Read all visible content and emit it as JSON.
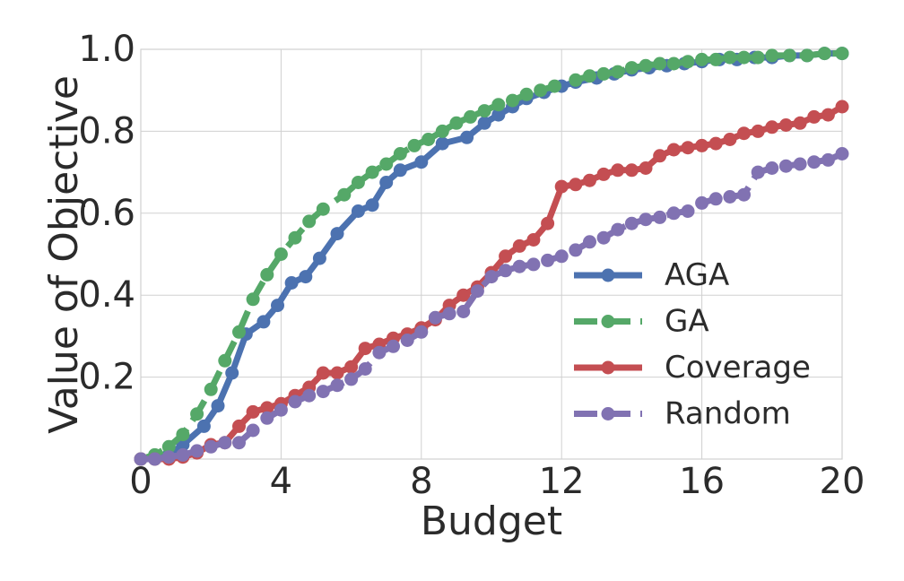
{
  "chart_data": {
    "type": "line",
    "title": "",
    "xlabel": "Budget",
    "ylabel": "Value of Objective",
    "xlim": [
      0,
      20
    ],
    "ylim": [
      0,
      1.0
    ],
    "xticks": [
      0,
      4,
      8,
      12,
      16,
      20
    ],
    "yticks": [
      0.2,
      0.4,
      0.6,
      0.8,
      1.0
    ],
    "xtick_labels": [
      "0",
      "4",
      "8",
      "12",
      "16",
      "20"
    ],
    "ytick_labels": [
      "0.2",
      "0.4",
      "0.6",
      "0.8",
      "1.0"
    ],
    "grid": true,
    "legend_position": "lower-right",
    "series": [
      {
        "name": "AGA",
        "color": "#4c72b0",
        "dash": "solid",
        "x": [
          0,
          0.4,
          0.8,
          1.2,
          1.8,
          2.2,
          2.6,
          3.0,
          3.5,
          3.9,
          4.3,
          4.7,
          5.1,
          5.6,
          6.2,
          6.6,
          7.0,
          7.4,
          8.0,
          8.6,
          9.3,
          9.8,
          10.2,
          10.6,
          11.0,
          11.5,
          12.0,
          12.4,
          13.0,
          13.5,
          14.0,
          14.5,
          15.0,
          15.5,
          16.0,
          16.5,
          17.0,
          17.5,
          18.0,
          18.5,
          19.0,
          19.5,
          20.0
        ],
        "y": [
          0.0,
          0.0,
          0.01,
          0.035,
          0.08,
          0.13,
          0.21,
          0.305,
          0.335,
          0.375,
          0.43,
          0.445,
          0.49,
          0.55,
          0.605,
          0.62,
          0.675,
          0.705,
          0.725,
          0.77,
          0.785,
          0.82,
          0.84,
          0.86,
          0.88,
          0.895,
          0.91,
          0.92,
          0.93,
          0.94,
          0.95,
          0.955,
          0.96,
          0.965,
          0.97,
          0.975,
          0.975,
          0.98,
          0.98,
          0.985,
          0.985,
          0.99,
          0.99
        ]
      },
      {
        "name": "GA",
        "color": "#55a868",
        "dash": "dashed",
        "x": [
          0,
          0.4,
          0.8,
          1.2,
          1.6,
          2.0,
          2.4,
          2.8,
          3.2,
          3.6,
          4.0,
          4.4,
          4.8,
          5.2,
          5.8,
          6.2,
          6.6,
          7.0,
          7.4,
          7.8,
          8.2,
          8.6,
          9.0,
          9.4,
          9.8,
          10.2,
          10.6,
          11.0,
          11.4,
          11.8,
          12.4,
          12.8,
          13.2,
          13.6,
          14.0,
          14.4,
          14.8,
          15.2,
          15.6,
          16.0,
          16.4,
          16.8,
          17.2,
          17.6,
          18.0,
          18.5,
          19.0,
          19.5,
          20.0
        ],
        "y": [
          0.0,
          0.01,
          0.03,
          0.06,
          0.11,
          0.17,
          0.24,
          0.31,
          0.39,
          0.45,
          0.5,
          0.54,
          0.58,
          0.61,
          0.645,
          0.675,
          0.7,
          0.72,
          0.745,
          0.765,
          0.78,
          0.8,
          0.82,
          0.835,
          0.85,
          0.865,
          0.875,
          0.89,
          0.9,
          0.91,
          0.925,
          0.935,
          0.94,
          0.945,
          0.955,
          0.96,
          0.965,
          0.965,
          0.97,
          0.975,
          0.975,
          0.98,
          0.98,
          0.98,
          0.985,
          0.985,
          0.985,
          0.99,
          0.99
        ]
      },
      {
        "name": "Coverage",
        "color": "#c44e52",
        "dash": "solid",
        "x": [
          0,
          0.4,
          0.8,
          1.2,
          1.6,
          2.0,
          2.4,
          2.8,
          3.2,
          3.6,
          4.0,
          4.4,
          4.8,
          5.2,
          5.6,
          6.0,
          6.4,
          6.8,
          7.2,
          7.6,
          8.0,
          8.4,
          8.8,
          9.2,
          9.6,
          10.0,
          10.4,
          10.8,
          11.2,
          11.6,
          12.0,
          12.4,
          12.8,
          13.2,
          13.6,
          14.0,
          14.4,
          14.8,
          15.2,
          15.6,
          16.0,
          16.4,
          16.8,
          17.2,
          17.6,
          18.0,
          18.4,
          18.8,
          19.2,
          19.6,
          20.0
        ],
        "y": [
          0.0,
          0.0,
          0.0,
          0.005,
          0.015,
          0.035,
          0.04,
          0.08,
          0.115,
          0.125,
          0.135,
          0.155,
          0.175,
          0.21,
          0.21,
          0.225,
          0.27,
          0.28,
          0.295,
          0.305,
          0.32,
          0.34,
          0.375,
          0.4,
          0.42,
          0.455,
          0.495,
          0.52,
          0.535,
          0.575,
          0.665,
          0.67,
          0.68,
          0.695,
          0.705,
          0.705,
          0.71,
          0.74,
          0.755,
          0.76,
          0.765,
          0.77,
          0.78,
          0.795,
          0.8,
          0.81,
          0.815,
          0.82,
          0.835,
          0.84,
          0.86
        ]
      },
      {
        "name": "Random",
        "color": "#8172b2",
        "dash": "dashed",
        "x": [
          0,
          0.4,
          0.8,
          1.2,
          1.6,
          2.0,
          2.4,
          2.8,
          3.2,
          3.6,
          4.0,
          4.4,
          4.8,
          5.2,
          5.6,
          6.0,
          6.4,
          6.8,
          7.2,
          7.6,
          8.0,
          8.4,
          8.8,
          9.2,
          9.6,
          10.0,
          10.4,
          10.8,
          11.2,
          11.6,
          12.0,
          12.4,
          12.8,
          13.2,
          13.6,
          14.0,
          14.4,
          14.8,
          15.2,
          15.6,
          16.0,
          16.4,
          16.8,
          17.2,
          17.6,
          18.0,
          18.4,
          18.8,
          19.2,
          19.6,
          20.0
        ],
        "y": [
          0.0,
          0.0,
          0.005,
          0.01,
          0.02,
          0.03,
          0.04,
          0.04,
          0.07,
          0.1,
          0.12,
          0.14,
          0.155,
          0.165,
          0.18,
          0.195,
          0.22,
          0.26,
          0.275,
          0.29,
          0.31,
          0.345,
          0.355,
          0.36,
          0.41,
          0.445,
          0.46,
          0.47,
          0.475,
          0.485,
          0.495,
          0.51,
          0.53,
          0.54,
          0.56,
          0.575,
          0.585,
          0.59,
          0.6,
          0.605,
          0.625,
          0.635,
          0.64,
          0.645,
          0.7,
          0.71,
          0.715,
          0.72,
          0.725,
          0.73,
          0.745
        ]
      }
    ]
  }
}
